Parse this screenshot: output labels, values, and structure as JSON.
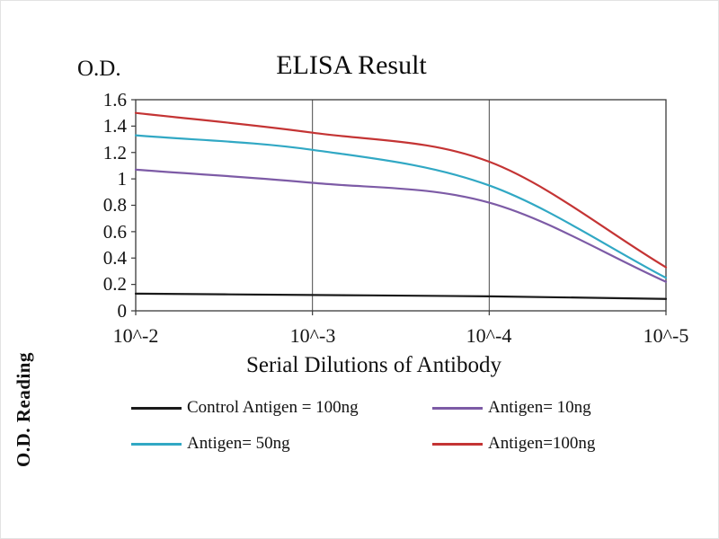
{
  "chart_data": {
    "type": "line",
    "title": "ELISA Result",
    "ylabel_top": "O.D.",
    "side_label": "O.D. Reading",
    "xlabel": "Serial Dilutions of Antibody",
    "x_ticks": [
      "10^-2",
      "10^-3",
      "10^-4",
      "10^-5"
    ],
    "y_ticks": [
      "1.6",
      "1.4",
      "1.2",
      "1",
      "0.8",
      "0.6",
      "0.4",
      "0.2",
      "0"
    ],
    "ylim": [
      0,
      1.6
    ],
    "grid": "vertical-only",
    "axis_color": "#3a3a3a",
    "grid_color": "#4a4a4a",
    "series": [
      {
        "name": "Control Antigen = 100ng",
        "color": "#1a1a1a",
        "values": [
          0.13,
          0.12,
          0.11,
          0.09
        ]
      },
      {
        "name": "Antigen= 10ng",
        "color": "#7d5ba6",
        "values": [
          1.07,
          0.97,
          0.82,
          0.22
        ]
      },
      {
        "name": "Antigen= 50ng",
        "color": "#31a8c4",
        "values": [
          1.33,
          1.22,
          0.95,
          0.25
        ]
      },
      {
        "name": "Antigen=100ng",
        "color": "#c43434",
        "values": [
          1.5,
          1.35,
          1.13,
          0.33
        ]
      }
    ]
  }
}
